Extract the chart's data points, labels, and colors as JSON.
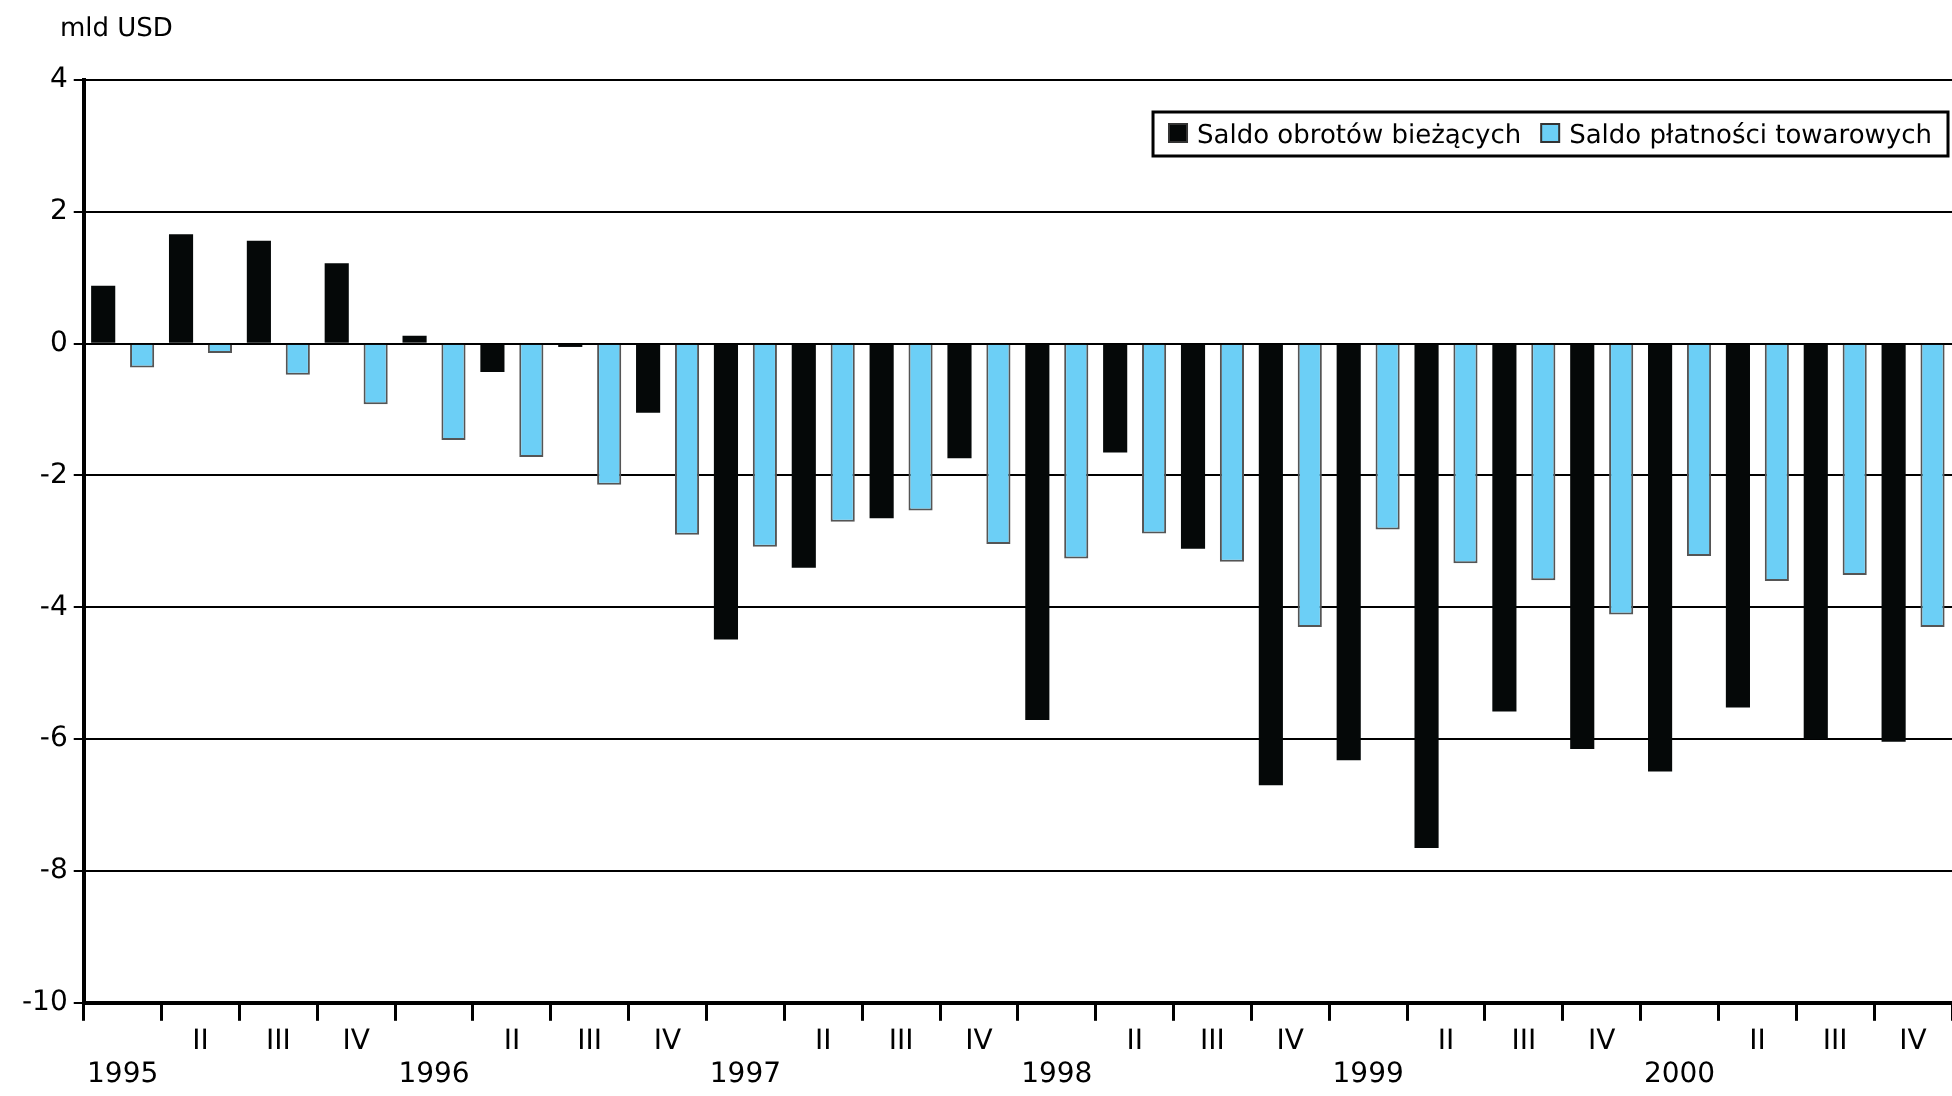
{
  "chart_data": {
    "type": "bar",
    "ylabel": "mld USD",
    "categories": [
      "1995",
      "II",
      "III",
      "IV",
      "1996",
      "II",
      "III",
      "IV",
      "1997",
      "II",
      "III",
      "IV",
      "1998",
      "II",
      "III",
      "IV",
      "1999",
      "II",
      "III",
      "IV",
      "2000",
      "II",
      "III",
      "IV"
    ],
    "series": [
      {
        "name": "Saldo obrotów bieżących",
        "color": "#050808",
        "values": [
          0.88,
          1.66,
          1.56,
          1.22,
          0.12,
          -0.43,
          -0.05,
          -1.05,
          -4.49,
          -3.4,
          -2.65,
          -1.74,
          -5.71,
          -1.65,
          -3.11,
          -6.7,
          -6.32,
          -7.65,
          -5.58,
          -6.15,
          -6.49,
          -5.52,
          -6.0,
          -6.04
        ]
      },
      {
        "name": "Saldo płatności towarowych",
        "color": "#6ccff6",
        "values": [
          -0.36,
          -0.14,
          -0.47,
          -0.92,
          -1.46,
          -1.72,
          -2.14,
          -2.9,
          -3.08,
          -2.7,
          -2.53,
          -3.04,
          -3.26,
          -2.88,
          -3.31,
          -4.3,
          -2.82,
          -3.33,
          -3.59,
          -4.11,
          -3.22,
          -3.6,
          -3.51,
          -4.3
        ]
      }
    ],
    "ylim": [
      -10,
      4
    ],
    "yticks": [
      -10,
      -8,
      -6,
      -4,
      -2,
      0,
      2,
      4
    ],
    "grid": "y",
    "legend": "top right"
  }
}
